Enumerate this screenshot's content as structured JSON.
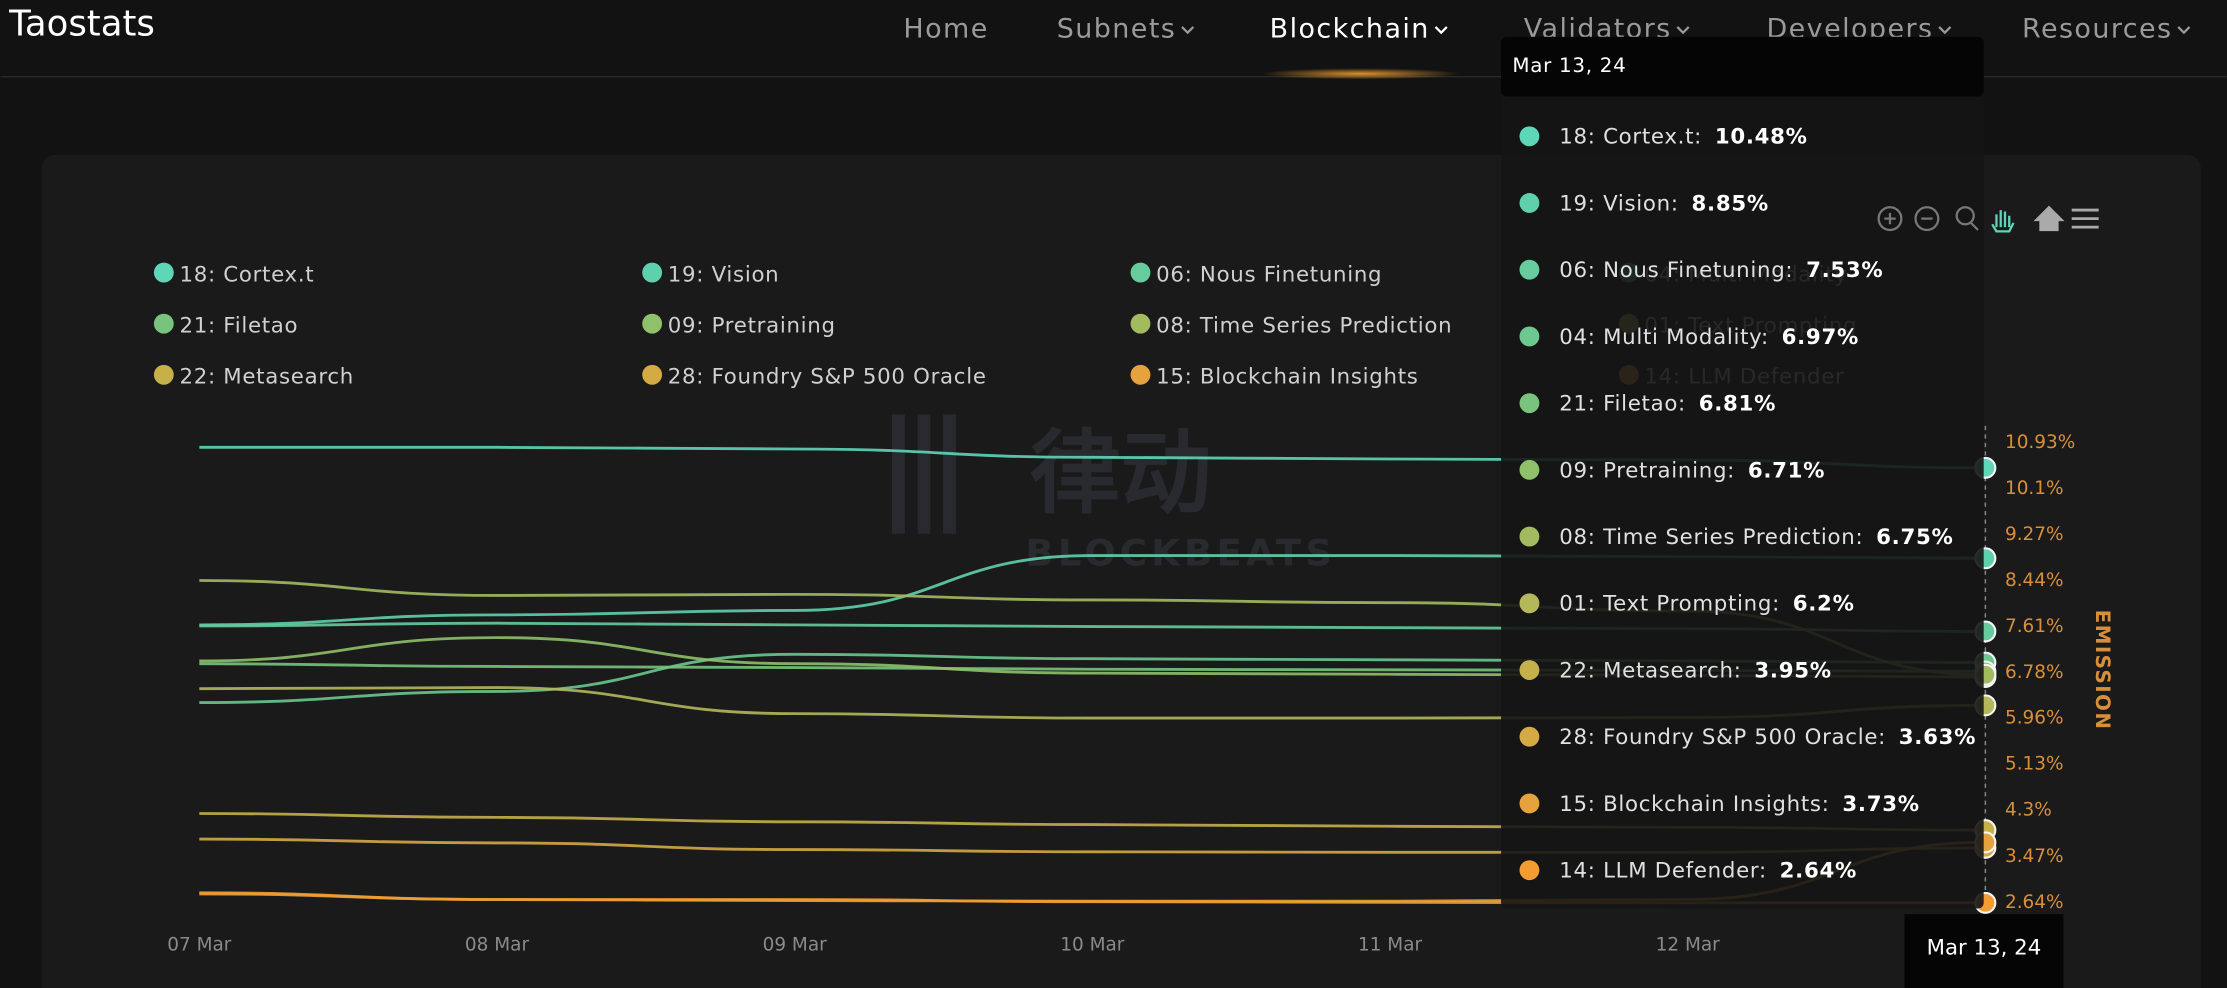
{
  "nav": {
    "logo": "Taostats",
    "items": [
      "Home",
      "Subnets",
      "Blockchain",
      "Validators",
      "Developers",
      "Resources"
    ]
  },
  "watermark": {
    "brand": "律动",
    "text": "BLOCKBEATS"
  },
  "chart_data": {
    "type": "line",
    "y_label": "EMISSION",
    "categories": [
      "07 Mar",
      "08 Mar",
      "09 Mar",
      "10 Mar",
      "11 Mar",
      "12 Mar",
      null
    ],
    "ylim": [
      2.64,
      10.93
    ],
    "yticks": [
      {
        "value": 10.93,
        "label": "10.93%"
      },
      {
        "value": 10.1,
        "label": "10.1%"
      },
      {
        "value": 9.27,
        "label": "9.27%"
      },
      {
        "value": 8.44,
        "label": "8.44%"
      },
      {
        "value": 7.61,
        "label": "7.61%"
      },
      {
        "value": 6.78,
        "label": "6.78%"
      },
      {
        "value": 5.96,
        "label": "5.96%"
      },
      {
        "value": 5.13,
        "label": "5.13%"
      },
      {
        "value": 4.3,
        "label": "4.3%"
      },
      {
        "value": 3.47,
        "label": "3.47%"
      },
      {
        "value": 2.64,
        "label": "2.64%"
      }
    ],
    "series": [
      {
        "name": "18: Cortex.t",
        "color": "#5ed6b8",
        "values": [
          10.85,
          10.85,
          10.82,
          10.67,
          10.64,
          10.62,
          10.48
        ]
      },
      {
        "name": "19: Vision",
        "color": "#5fd0ad",
        "values": [
          7.65,
          7.83,
          7.91,
          8.9,
          8.9,
          8.88,
          8.85
        ]
      },
      {
        "name": "06: Nous Finetuning",
        "color": "#66cc9e",
        "values": [
          7.63,
          7.68,
          7.65,
          7.62,
          7.6,
          7.58,
          7.53
        ]
      },
      {
        "name": "04: Multi Modality",
        "color": "#6cc88f",
        "values": [
          6.25,
          6.45,
          7.12,
          7.04,
          7.02,
          7.0,
          6.97
        ]
      },
      {
        "name": "21: Filetao",
        "color": "#78c47c",
        "values": [
          6.95,
          6.9,
          6.88,
          6.85,
          6.84,
          6.83,
          6.81
        ]
      },
      {
        "name": "09: Pretraining",
        "color": "#8fc06a",
        "values": [
          7.0,
          7.42,
          6.95,
          6.78,
          6.76,
          6.74,
          6.71
        ]
      },
      {
        "name": "08: Time Series Prediction",
        "color": "#a3bb60",
        "values": [
          8.45,
          8.18,
          8.2,
          8.1,
          8.05,
          7.9,
          6.75
        ]
      },
      {
        "name": "01: Text Prompting",
        "color": "#b4b75a",
        "values": [
          6.5,
          6.52,
          6.05,
          5.97,
          5.97,
          5.98,
          6.2
        ]
      },
      {
        "name": "22: Metasearch",
        "color": "#c6b04a",
        "values": [
          4.25,
          4.18,
          4.1,
          4.05,
          4.02,
          4.0,
          3.95
        ]
      },
      {
        "name": "28: Foundry S&P 500 Oracle",
        "color": "#d4aa45",
        "values": [
          3.79,
          3.72,
          3.6,
          3.56,
          3.55,
          3.55,
          3.63
        ]
      },
      {
        "name": "15: Blockchain Insights",
        "color": "#e6a23c",
        "values": [
          2.8,
          2.7,
          2.68,
          2.67,
          2.67,
          2.7,
          3.73
        ]
      },
      {
        "name": "14: LLM Defender",
        "color": "#f29c32",
        "values": [
          2.82,
          2.7,
          2.7,
          2.66,
          2.65,
          2.64,
          2.64
        ]
      }
    ],
    "tooltip": {
      "title": "Mar 13, 24",
      "rows": [
        {
          "label": "18: Cortex.t:",
          "value_label": "10.48%"
        },
        {
          "label": "19: Vision:",
          "value_label": "8.85%"
        },
        {
          "label": "06: Nous Finetuning:",
          "value_label": "7.53%"
        },
        {
          "label": "04: Multi Modality:",
          "value_label": "6.97%"
        },
        {
          "label": "21: Filetao:",
          "value_label": "6.81%"
        },
        {
          "label": "09: Pretraining:",
          "value_label": "6.71%"
        },
        {
          "label": "08: Time Series Prediction:",
          "value_label": "6.75%"
        },
        {
          "label": "01: Text Prompting:",
          "value_label": "6.2%"
        },
        {
          "label": "22: Metasearch:",
          "value_label": "3.95%"
        },
        {
          "label": "28: Foundry S&P 500 Oracle:",
          "value_label": "3.63%"
        },
        {
          "label": "15: Blockchain Insights:",
          "value_label": "3.73%"
        },
        {
          "label": "14: LLM Defender:",
          "value_label": "2.64%"
        }
      ]
    }
  }
}
